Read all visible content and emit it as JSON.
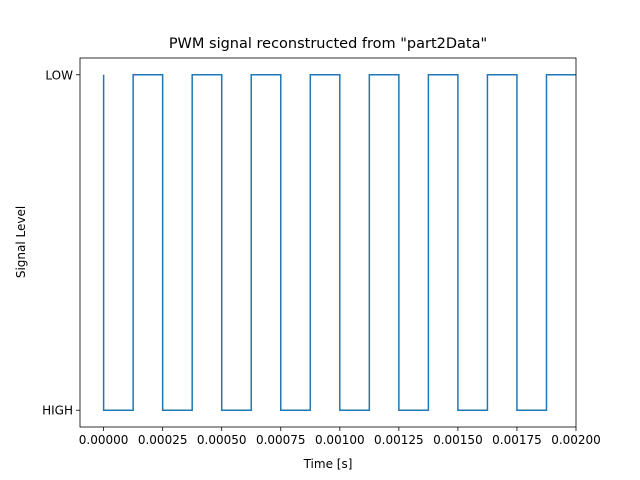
{
  "chart_data": {
    "type": "line",
    "style": "step",
    "title": "PWM signal reconstructed from \"part2Data\"",
    "xlabel": "Time [s]",
    "ylabel": "Signal Level",
    "xlim": [
      -0.0001,
      0.002
    ],
    "ylim": [
      -0.05,
      1.05
    ],
    "x_ticks": [
      0.0,
      0.00025,
      0.0005,
      0.00075,
      0.001,
      0.00125,
      0.0015,
      0.00175,
      0.002
    ],
    "x_tick_labels": [
      "0.00000",
      "0.00025",
      "0.00050",
      "0.00075",
      "0.00100",
      "0.00125",
      "0.00150",
      "0.00175",
      "0.00200"
    ],
    "y_ticks": [
      0,
      1
    ],
    "y_tick_labels": [
      "HIGH",
      "LOW"
    ],
    "grid": false,
    "line_color": "#1f77b4",
    "series": [
      {
        "x": [
          0.0,
          0.0,
          0.000125,
          0.000125,
          0.00025,
          0.00025,
          0.000375,
          0.000375,
          0.0005,
          0.0005,
          0.000625,
          0.000625,
          0.00075,
          0.00075,
          0.000875,
          0.000875,
          0.001,
          0.001,
          0.001125,
          0.001125,
          0.00125,
          0.00125,
          0.001375,
          0.001375,
          0.0015,
          0.0015,
          0.001625,
          0.001625,
          0.00175,
          0.00175,
          0.001875,
          0.001875,
          0.002
        ],
        "y": [
          1,
          0,
          0,
          1,
          1,
          0,
          0,
          1,
          1,
          0,
          0,
          1,
          1,
          0,
          0,
          1,
          1,
          0,
          0,
          1,
          1,
          0,
          0,
          1,
          1,
          0,
          0,
          1,
          1,
          0,
          0,
          1,
          1
        ]
      }
    ]
  }
}
